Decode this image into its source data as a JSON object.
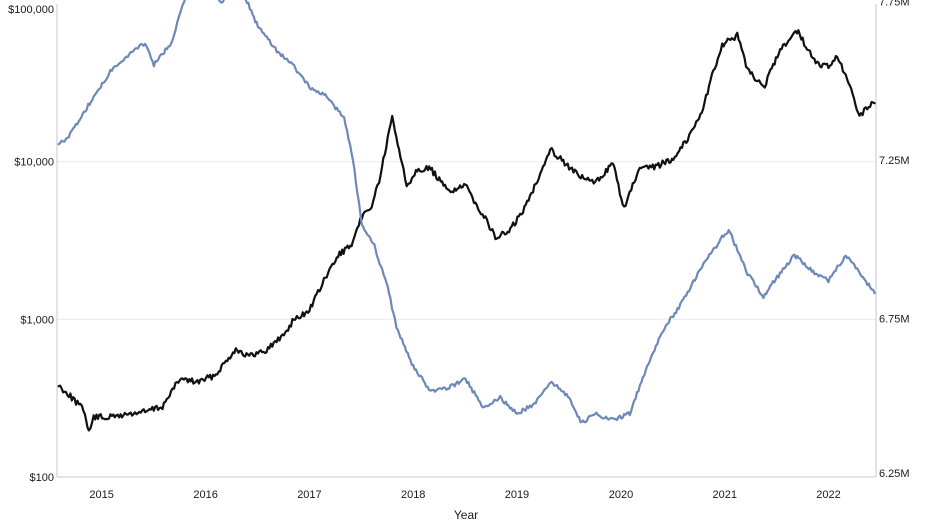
{
  "chart_data": {
    "type": "line",
    "xlabel": "Year",
    "x_ticks": [
      "2015",
      "2016",
      "2017",
      "2018",
      "2019",
      "2020",
      "2021",
      "2022"
    ],
    "left_axis": {
      "scale": "log",
      "range": [
        100,
        100000
      ],
      "ticks": [
        "$100",
        "$1,000",
        "$10,000",
        "$100,000"
      ],
      "tick_values": [
        100,
        1000,
        10000,
        100000
      ]
    },
    "right_axis": {
      "scale": "linear",
      "range": [
        6.25,
        7.75
      ],
      "unit": "M",
      "ticks": [
        "6.25M",
        "6.75M",
        "7.25M",
        "7.75M"
      ],
      "tick_values": [
        6.25,
        6.75,
        7.25,
        7.75
      ]
    },
    "grid": "horizontal",
    "series": [
      {
        "axis": "left",
        "color": "#111111",
        "points": [
          [
            "2014-10-01",
            380
          ],
          [
            "2014-11-01",
            340
          ],
          [
            "2014-12-01",
            300
          ],
          [
            "2015-01-01",
            260
          ],
          [
            "2015-01-15",
            190
          ],
          [
            "2015-02-01",
            240
          ],
          [
            "2015-04-01",
            240
          ],
          [
            "2015-06-01",
            250
          ],
          [
            "2015-08-01",
            260
          ],
          [
            "2015-10-01",
            280
          ],
          [
            "2015-12-01",
            420
          ],
          [
            "2016-02-01",
            400
          ],
          [
            "2016-04-01",
            440
          ],
          [
            "2016-06-15",
            650
          ],
          [
            "2016-08-01",
            580
          ],
          [
            "2016-10-01",
            640
          ],
          [
            "2016-12-01",
            800
          ],
          [
            "2017-01-05",
            1000
          ],
          [
            "2017-02-01",
            1050
          ],
          [
            "2017-03-01",
            1150
          ],
          [
            "2017-05-01",
            1900
          ],
          [
            "2017-06-15",
            2600
          ],
          [
            "2017-08-01",
            3000
          ],
          [
            "2017-09-01",
            4500
          ],
          [
            "2017-10-01",
            5000
          ],
          [
            "2017-11-01",
            7500
          ],
          [
            "2017-12-17",
            19000
          ],
          [
            "2018-01-15",
            11000
          ],
          [
            "2018-02-06",
            7000
          ],
          [
            "2018-03-15",
            9000
          ],
          [
            "2018-05-01",
            9000
          ],
          [
            "2018-07-01",
            6500
          ],
          [
            "2018-09-01",
            7000
          ],
          [
            "2018-11-15",
            4200
          ],
          [
            "2018-12-15",
            3300
          ],
          [
            "2019-02-01",
            3600
          ],
          [
            "2019-04-01",
            5200
          ],
          [
            "2019-06-26",
            12000
          ],
          [
            "2019-08-01",
            10500
          ],
          [
            "2019-10-01",
            8200
          ],
          [
            "2019-12-01",
            7300
          ],
          [
            "2020-02-01",
            9800
          ],
          [
            "2020-03-12",
            5000
          ],
          [
            "2020-05-01",
            8800
          ],
          [
            "2020-07-01",
            9300
          ],
          [
            "2020-09-01",
            10500
          ],
          [
            "2020-11-01",
            15000
          ],
          [
            "2020-12-15",
            22000
          ],
          [
            "2021-01-15",
            35000
          ],
          [
            "2021-02-20",
            55000
          ],
          [
            "2021-04-14",
            63000
          ],
          [
            "2021-05-20",
            38000
          ],
          [
            "2021-07-20",
            30000
          ],
          [
            "2021-09-07",
            50000
          ],
          [
            "2021-11-10",
            68000
          ],
          [
            "2022-01-15",
            42000
          ],
          [
            "2022-03-01",
            40000
          ],
          [
            "2022-04-01",
            46000
          ],
          [
            "2022-05-15",
            30000
          ],
          [
            "2022-06-18",
            19500
          ],
          [
            "2022-07-15",
            22000
          ],
          [
            "2022-08-10",
            23500
          ]
        ]
      },
      {
        "axis": "right",
        "color": "#6e88b8",
        "points": [
          [
            "2014-10-01",
            7.3
          ],
          [
            "2014-11-01",
            7.32
          ],
          [
            "2014-12-15",
            7.38
          ],
          [
            "2015-02-01",
            7.45
          ],
          [
            "2015-04-01",
            7.53
          ],
          [
            "2015-06-01",
            7.58
          ],
          [
            "2015-08-01",
            7.62
          ],
          [
            "2015-09-01",
            7.55
          ],
          [
            "2015-11-01",
            7.62
          ],
          [
            "2016-01-01",
            7.8
          ],
          [
            "2016-03-01",
            7.78
          ],
          [
            "2016-05-01",
            7.75
          ],
          [
            "2016-07-01",
            7.8
          ],
          [
            "2016-09-01",
            7.67
          ],
          [
            "2016-11-01",
            7.6
          ],
          [
            "2017-01-01",
            7.55
          ],
          [
            "2017-03-01",
            7.48
          ],
          [
            "2017-05-01",
            7.45
          ],
          [
            "2017-07-01",
            7.38
          ],
          [
            "2017-08-01",
            7.25
          ],
          [
            "2017-09-01",
            7.05
          ],
          [
            "2017-10-15",
            6.98
          ],
          [
            "2017-12-01",
            6.85
          ],
          [
            "2018-01-01",
            6.72
          ],
          [
            "2018-03-01",
            6.6
          ],
          [
            "2018-05-01",
            6.52
          ],
          [
            "2018-07-01",
            6.53
          ],
          [
            "2018-09-01",
            6.56
          ],
          [
            "2018-11-01",
            6.47
          ],
          [
            "2019-01-01",
            6.5
          ],
          [
            "2019-03-01",
            6.45
          ],
          [
            "2019-05-01",
            6.48
          ],
          [
            "2019-07-01",
            6.55
          ],
          [
            "2019-09-01",
            6.5
          ],
          [
            "2019-10-15",
            6.42
          ],
          [
            "2019-12-01",
            6.45
          ],
          [
            "2020-02-01",
            6.43
          ],
          [
            "2020-04-01",
            6.45
          ],
          [
            "2020-06-01",
            6.6
          ],
          [
            "2020-08-01",
            6.72
          ],
          [
            "2020-10-01",
            6.8
          ],
          [
            "2020-12-01",
            6.9
          ],
          [
            "2021-02-15",
            7.0
          ],
          [
            "2021-03-15",
            7.03
          ],
          [
            "2021-05-15",
            6.9
          ],
          [
            "2021-07-15",
            6.82
          ],
          [
            "2021-09-01",
            6.88
          ],
          [
            "2021-11-01",
            6.95
          ],
          [
            "2022-01-01",
            6.9
          ],
          [
            "2022-03-01",
            6.87
          ],
          [
            "2022-05-01",
            6.95
          ],
          [
            "2022-06-15",
            6.9
          ],
          [
            "2022-08-10",
            6.83
          ]
        ]
      }
    ]
  }
}
